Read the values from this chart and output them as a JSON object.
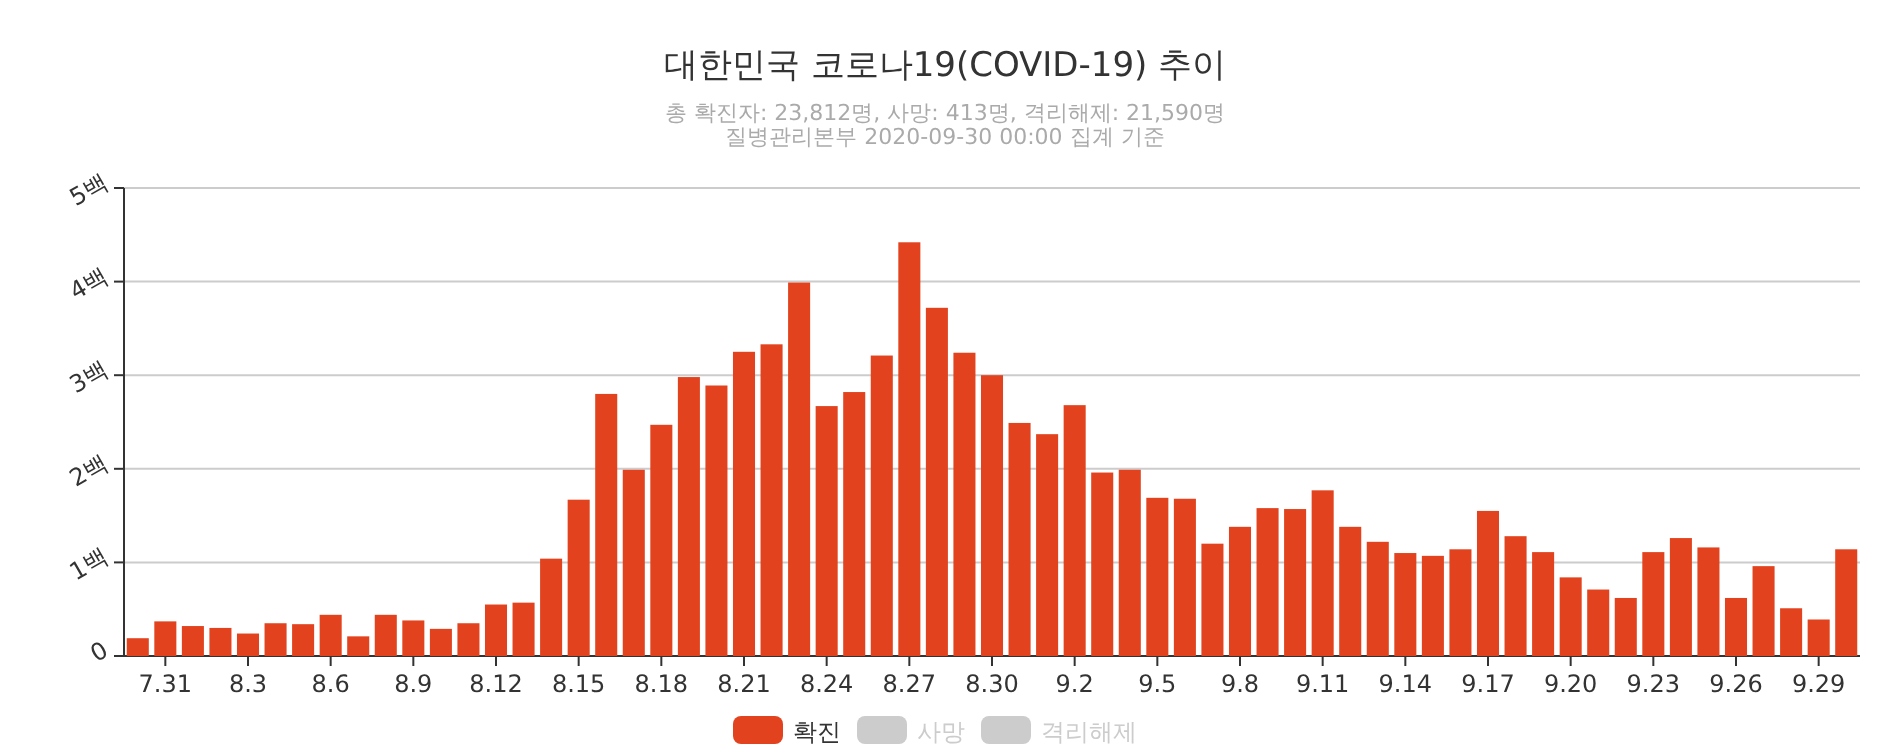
{
  "chart_data": {
    "type": "bar",
    "title": "대한민국 코로나19(COVID-19) 추이",
    "subtitle": "총 확진자: 23,812명, 사망: 413명, 격리해제: 21,590명\n질병관리본부 2020-09-30 00:00 집계 기준",
    "categories": [
      null,
      "7.31",
      null,
      null,
      "8.3",
      null,
      null,
      "8.6",
      null,
      null,
      "8.9",
      null,
      null,
      "8.12",
      null,
      null,
      "8.15",
      null,
      null,
      "8.18",
      null,
      null,
      "8.21",
      null,
      null,
      "8.24",
      null,
      null,
      "8.27",
      null,
      null,
      "8.30",
      null,
      null,
      "9.2",
      null,
      null,
      "9.5",
      null,
      null,
      "9.8",
      null,
      null,
      "9.11",
      null,
      null,
      "9.14",
      null,
      null,
      "9.17",
      null,
      null,
      "9.20",
      null,
      null,
      "9.23",
      null,
      null,
      "9.26",
      null,
      null,
      "9.29",
      null
    ],
    "series": [
      {
        "name": "확진",
        "color": "#e2431e",
        "values": [
          0.19,
          0.37,
          0.32,
          0.3,
          0.24,
          0.35,
          0.34,
          0.44,
          0.21,
          0.44,
          0.38,
          0.29,
          0.35,
          0.55,
          0.57,
          1.04,
          1.67,
          2.8,
          1.99,
          2.47,
          2.98,
          2.89,
          3.25,
          3.33,
          3.99,
          2.67,
          2.82,
          3.21,
          4.42,
          3.72,
          3.24,
          3.0,
          2.49,
          2.37,
          2.68,
          1.96,
          1.99,
          1.69,
          1.68,
          1.2,
          1.38,
          1.58,
          1.57,
          1.77,
          1.38,
          1.22,
          1.1,
          1.07,
          1.14,
          1.55,
          1.28,
          1.11,
          0.84,
          0.71,
          0.62,
          1.11,
          1.26,
          1.16,
          0.62,
          0.96,
          0.51,
          0.39,
          1.14
        ]
      },
      {
        "name": "사망",
        "color": "#cccccc",
        "values": [
          null,
          null,
          null,
          null,
          null,
          null,
          null,
          null,
          null,
          null,
          null,
          null,
          null,
          null,
          null,
          null,
          null,
          null,
          null,
          null,
          null,
          null,
          null,
          null,
          null,
          null,
          null,
          null,
          null,
          null,
          null,
          null,
          null,
          null,
          null,
          null,
          null,
          null,
          null,
          null,
          null,
          null,
          null,
          null,
          null,
          null,
          null,
          null,
          null,
          null,
          null,
          null,
          null,
          null,
          null,
          null,
          null,
          null,
          null,
          null,
          null,
          null,
          null
        ]
      },
      {
        "name": "격리해제",
        "color": "#cccccc",
        "values": [
          null,
          null,
          null,
          null,
          null,
          null,
          null,
          null,
          null,
          null,
          null,
          null,
          null,
          null,
          null,
          null,
          null,
          null,
          null,
          null,
          null,
          null,
          null,
          null,
          null,
          null,
          null,
          null,
          null,
          null,
          null,
          null,
          null,
          null,
          null,
          null,
          null,
          null,
          null,
          null,
          null,
          null,
          null,
          null,
          null,
          null,
          null,
          null,
          null,
          null,
          null,
          null,
          null,
          null,
          null,
          null,
          null,
          null,
          null,
          null,
          null,
          null,
          null
        ]
      }
    ],
    "ylim": [
      0,
      5
    ],
    "yticks": [
      0,
      {
        "value": 1,
        "label": "1백"
      },
      {
        "value": 2,
        "label": "2백"
      },
      {
        "value": 3,
        "label": "3백"
      },
      {
        "value": 4,
        "label": "4백"
      },
      {
        "value": 5,
        "label": "5백"
      }
    ],
    "grid": "y",
    "legend": "bottom"
  }
}
